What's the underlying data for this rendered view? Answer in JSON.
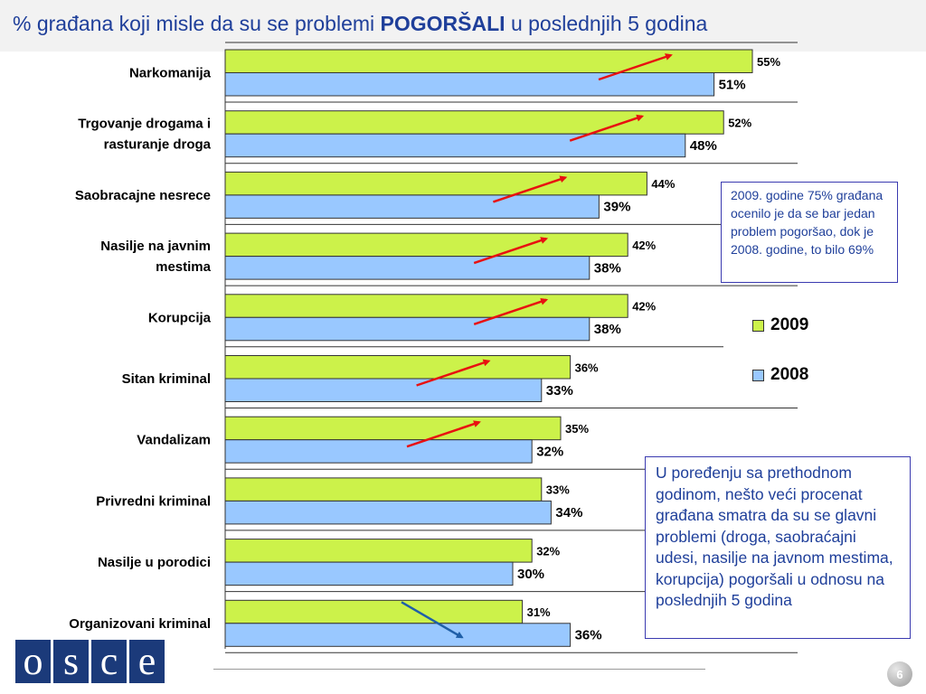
{
  "header": {
    "title_prefix": "% građana koji misle da su se problemi ",
    "title_bold": "POGORŠALI",
    "title_suffix": " u poslednjih 5 godina"
  },
  "chart_data": {
    "type": "bar",
    "orientation": "horizontal",
    "categories": [
      [
        "Narkomanija"
      ],
      [
        "Trgovanje drogama i",
        "rasturanje droga"
      ],
      [
        "Saobracajne nesrece"
      ],
      [
        "Nasilje na javnim",
        "mestima"
      ],
      [
        "Korupcija"
      ],
      [
        "Sitan kriminal"
      ],
      [
        "Vandalizam"
      ],
      [
        "Privredni kriminal"
      ],
      [
        "Nasilje u porodici"
      ],
      [
        "Organizovani kriminal"
      ]
    ],
    "series": [
      {
        "name": "2009",
        "color": "#ccf24a",
        "values": [
          55,
          52,
          44,
          42,
          42,
          36,
          35,
          33,
          32,
          31
        ],
        "labels": [
          "55%",
          "52%",
          "44%",
          "42%",
          "42%",
          "36%",
          "35%",
          "33%",
          "32%",
          "31%"
        ]
      },
      {
        "name": "2008",
        "color": "#99c8ff",
        "values": [
          51,
          48,
          39,
          38,
          38,
          33,
          32,
          34,
          30,
          36
        ],
        "labels": [
          "51%",
          "48%",
          "39%",
          "38%",
          "38%",
          "33%",
          "32%",
          "34%",
          "30%",
          "36%"
        ]
      }
    ],
    "trend_arrows": [
      "up",
      "up",
      "up",
      "up",
      "up",
      "up",
      "up",
      "none",
      "none",
      "down"
    ],
    "arrow_colors": {
      "up": "#e81010",
      "down": "#1f5fa8"
    },
    "xlim": [
      0,
      60
    ],
    "legend_position": "right"
  },
  "legend": [
    {
      "label": "2009",
      "color": "#ccf24a"
    },
    {
      "label": "2008",
      "color": "#99c8ff"
    }
  ],
  "notes": {
    "note1": "2009. godine 75% građana ocenilo je da se bar jedan problem pogoršao, dok je 2008. godine, to bilo  69%",
    "note2": "U poređenju sa prethodnom godinom, nešto veći procenat građana smatra da su se glavni problemi (droga, saobraćajni udesi, nasilje na javnom mestima, korupcija) pogoršali u odnosu na poslednjih 5 godina"
  },
  "logo_letters": [
    "o",
    "s",
    "c",
    "e"
  ],
  "page_number": "6"
}
